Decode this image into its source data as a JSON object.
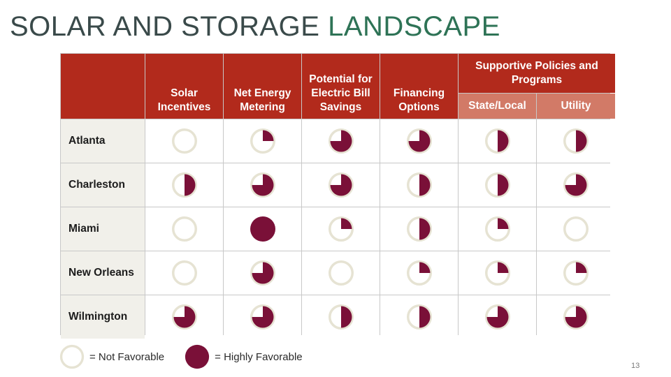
{
  "title": {
    "part1": "SOLAR AND STORAGE",
    "part2": "LANDSCAPE"
  },
  "table": {
    "headers": {
      "solar_incentives": "Solar Incentives",
      "net_energy_metering": "Net Energy Metering",
      "potential_savings": "Potential for Electric Bill Savings",
      "financing_options": "Financing Options",
      "supportive_group": "Supportive Policies and Programs",
      "state_local": "State/Local",
      "utility": "Utility"
    },
    "rows": [
      {
        "city": "Atlanta",
        "ratings": [
          0,
          0.25,
          0.75,
          0.75,
          0.5,
          0.5
        ]
      },
      {
        "city": "Charleston",
        "ratings": [
          0.5,
          0.75,
          0.75,
          0.5,
          0.5,
          0.75
        ]
      },
      {
        "city": "Miami",
        "ratings": [
          0,
          1,
          0.25,
          0.5,
          0.25,
          0
        ]
      },
      {
        "city": "New Orleans",
        "ratings": [
          0,
          0.75,
          0,
          0.25,
          0.25,
          0.25
        ]
      },
      {
        "city": "Wilmington",
        "ratings": [
          0.75,
          0.75,
          0.5,
          0.5,
          0.75,
          0.75
        ]
      }
    ]
  },
  "legend": {
    "not_favorable": "= Not Favorable",
    "highly_favorable": "= Highly Favorable"
  },
  "page_number": "13",
  "colors": {
    "header_red": "#b22a1c",
    "subheader_salmon": "#d27a67",
    "fill_maroon": "#7a1038",
    "empty_ring": "#e6e3d3",
    "title_green": "#2e7356"
  }
}
